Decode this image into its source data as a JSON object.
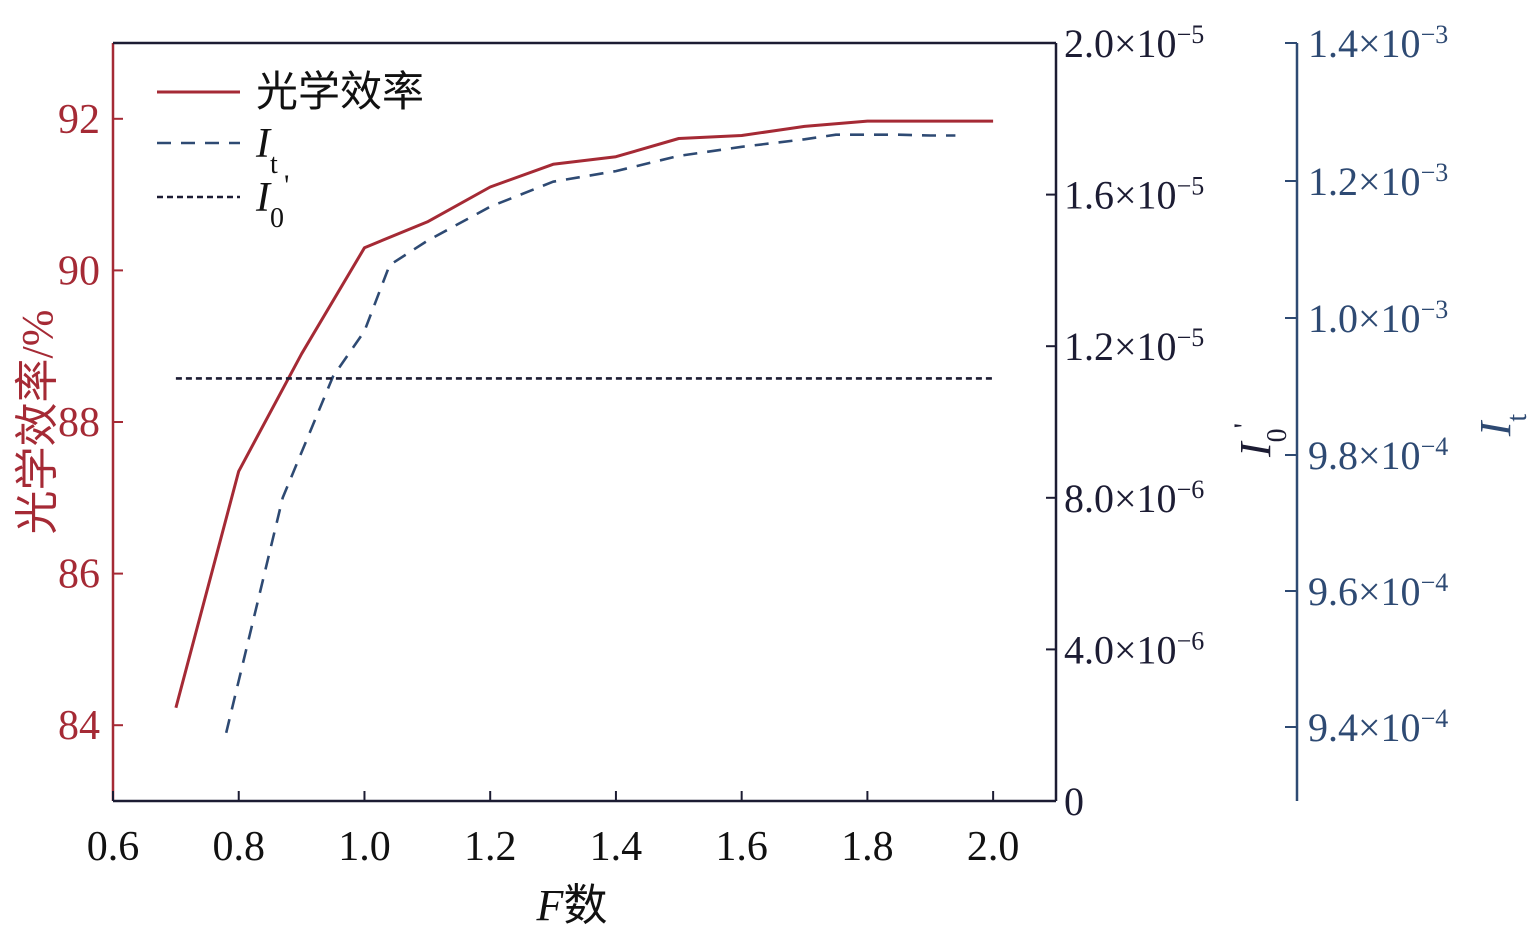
{
  "chart_data": {
    "type": "line",
    "xlabel_var": "F",
    "xlabel_suffix": "数",
    "ylabel": "光学效率/%",
    "y2label_base": "I",
    "y2label_sub": "0",
    "y2label_prime": "'",
    "y3label_base": "I",
    "y3label_sub": "t",
    "xlim": [
      0.6,
      2.1
    ],
    "ylim": [
      83.0,
      93.0
    ],
    "y2lim": [
      0,
      2e-05
    ],
    "y3lim": [
      0.00093,
      0.0014
    ],
    "x_ticks": [
      "0.6",
      "0.8",
      "1.0",
      "1.2",
      "1.4",
      "1.6",
      "1.8",
      "2.0"
    ],
    "y_ticks": [
      "84",
      "86",
      "88",
      "90",
      "92"
    ],
    "y2_ticks": [
      {
        "mant": "0",
        "exp": ""
      },
      {
        "mant": "4.0×10",
        "exp": "−6"
      },
      {
        "mant": "8.0×10",
        "exp": "−6"
      },
      {
        "mant": "1.2×10",
        "exp": "−5"
      },
      {
        "mant": "1.6×10",
        "exp": "−5"
      },
      {
        "mant": "2.0×10",
        "exp": "−5"
      }
    ],
    "y3_ticks": [
      {
        "mant": "9.4×10",
        "exp": "−4"
      },
      {
        "mant": "9.6×10",
        "exp": "−4"
      },
      {
        "mant": "9.8×10",
        "exp": "−4"
      },
      {
        "mant": "1.0×10",
        "exp": "−3"
      },
      {
        "mant": "1.2×10",
        "exp": "−3"
      },
      {
        "mant": "1.4×10",
        "exp": "−3"
      }
    ],
    "legend": {
      "position": "top-left",
      "entries": [
        {
          "label": "光学效率",
          "sub": "",
          "prime": ""
        },
        {
          "label": "I",
          "sub": "t",
          "prime": ""
        },
        {
          "label": "I",
          "sub": "0",
          "prime": "'"
        }
      ]
    },
    "series": [
      {
        "name": "光学效率",
        "axis": "left",
        "color": "#a52a35",
        "style": "solid",
        "x": [
          0.7,
          0.8,
          0.9,
          1.0,
          1.1,
          1.2,
          1.3,
          1.4,
          1.5,
          1.6,
          1.7,
          1.8,
          1.9,
          2.0
        ],
        "y": [
          84.23,
          87.35,
          88.9,
          90.3,
          90.64,
          91.1,
          91.4,
          91.5,
          91.74,
          91.78,
          91.9,
          91.97,
          91.97,
          91.97
        ]
      },
      {
        "name": "I_t",
        "axis": "left",
        "color": "#2e4a73",
        "style": "dashed",
        "x": [
          0.78,
          0.87,
          0.95,
          1.0,
          1.04,
          1.1,
          1.2,
          1.3,
          1.4,
          1.5,
          1.6,
          1.7,
          1.75,
          1.8,
          1.85,
          1.9,
          1.94
        ],
        "y": [
          83.9,
          87.0,
          88.6,
          89.2,
          90.07,
          90.39,
          90.84,
          91.17,
          91.31,
          91.51,
          91.63,
          91.73,
          91.79,
          91.79,
          91.79,
          91.78,
          91.78
        ]
      },
      {
        "name": "I_0'",
        "axis": "right",
        "color": "#1c1c33",
        "style": "dotted",
        "x": [
          0.7,
          2.0
        ],
        "y": [
          1.115e-05,
          1.115e-05
        ]
      }
    ]
  }
}
